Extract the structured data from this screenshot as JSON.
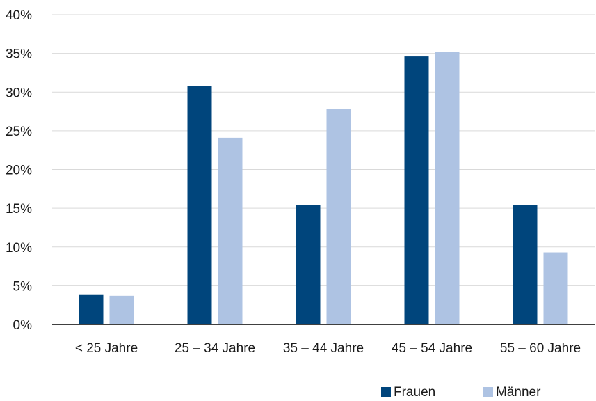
{
  "chart_data": {
    "type": "bar",
    "title": "",
    "xlabel": "",
    "ylabel": "",
    "categories": [
      "< 25 Jahre",
      "25 – 34 Jahre",
      "35 – 44 Jahre",
      "45 – 54 Jahre",
      "55 – 60 Jahre"
    ],
    "series": [
      {
        "name": "Frauen",
        "color": "#00457c",
        "values": [
          3.8,
          30.8,
          15.4,
          34.6,
          15.4
        ]
      },
      {
        "name": "Männer",
        "color": "#aec3e3",
        "values": [
          3.7,
          24.1,
          27.8,
          35.2,
          9.3
        ]
      }
    ],
    "ylim": [
      0,
      40
    ],
    "yticks": [
      0,
      5,
      10,
      15,
      20,
      25,
      30,
      35,
      40
    ],
    "ytick_labels": [
      "0%",
      "5%",
      "10%",
      "15%",
      "20%",
      "25%",
      "30%",
      "35%",
      "40%"
    ],
    "grid": true,
    "legend_position": "bottom-right"
  }
}
